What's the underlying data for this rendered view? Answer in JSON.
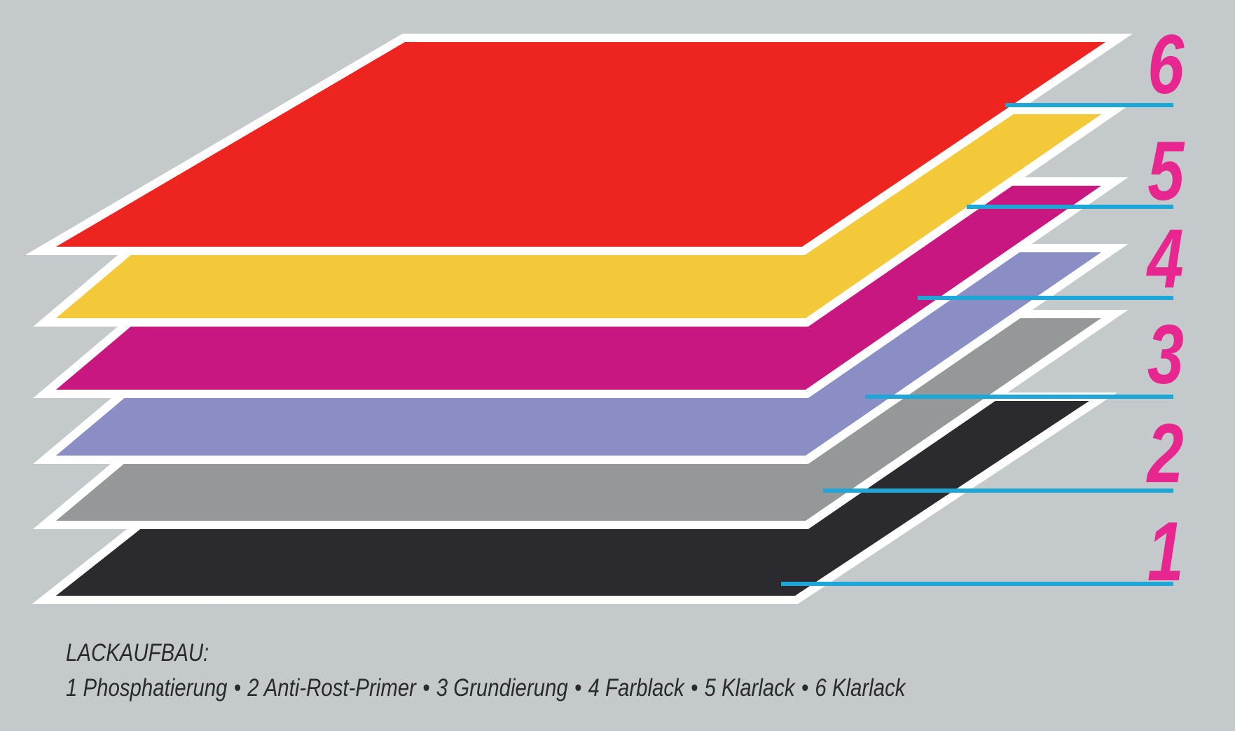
{
  "caption": {
    "title": "LACKAUFBAU:",
    "separator": "•"
  },
  "layers": [
    {
      "number": "1",
      "label": "Phosphatierung",
      "color": "#2b2b2f"
    },
    {
      "number": "2",
      "label": "Anti-Rost-Primer",
      "color": "#959899"
    },
    {
      "number": "3",
      "label": "Grundierung",
      "color": "#8a8ec4"
    },
    {
      "number": "4",
      "label": "Farblack",
      "color": "#c8177e"
    },
    {
      "number": "5",
      "label": "Klarlack",
      "color": "#f3c93a"
    },
    {
      "number": "6",
      "label": "Klarlack",
      "color": "#ee2421"
    }
  ],
  "colors": {
    "background": "#c4cacc",
    "outline": "#ffffff",
    "leader_lines": "#1ea6d8",
    "numbers": "#e8268f"
  }
}
